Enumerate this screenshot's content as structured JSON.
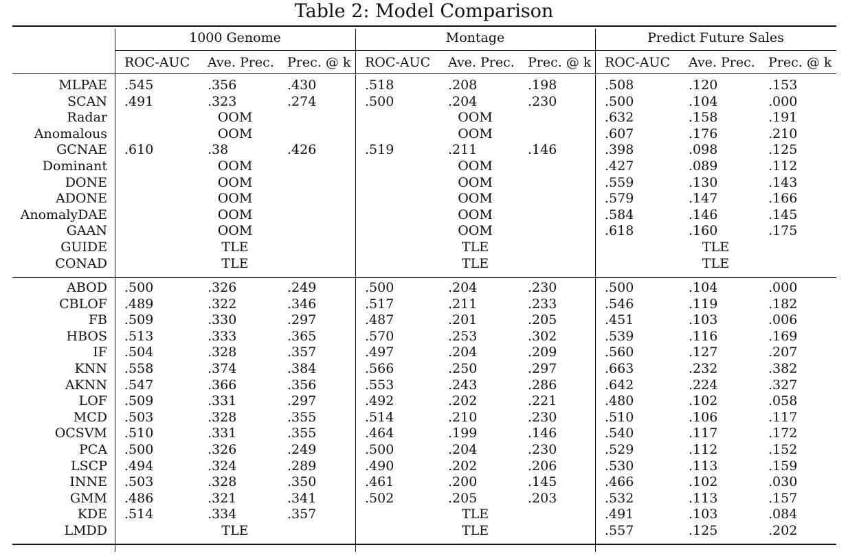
{
  "caption": "Table 2: Model Comparison",
  "groups": [
    "1000 Genome",
    "Montage",
    "Predict Future Sales"
  ],
  "metrics": [
    "ROC-AUC",
    "Ave. Prec.",
    "Prec. @ k"
  ],
  "section1": [
    {
      "model": "MLPAE",
      "g": [
        [
          ".545",
          ".356",
          ".430"
        ],
        [
          ".518",
          ".208",
          ".198"
        ],
        [
          ".508",
          ".120",
          ".153"
        ]
      ]
    },
    {
      "model": "SCAN",
      "g": [
        [
          ".491",
          ".323",
          ".274"
        ],
        [
          ".500",
          ".204",
          ".230"
        ],
        [
          ".500",
          ".104",
          ".000"
        ]
      ]
    },
    {
      "model": "Radar",
      "g": [
        "OOM",
        "OOM",
        [
          ".632",
          ".158",
          ".191"
        ]
      ]
    },
    {
      "model": "Anomalous",
      "g": [
        "OOM",
        "OOM",
        [
          ".607",
          ".176",
          ".210"
        ]
      ]
    },
    {
      "model": "GCNAE",
      "g": [
        [
          ".610",
          ".38",
          ".426"
        ],
        [
          ".519",
          ".211",
          ".146"
        ],
        [
          ".398",
          ".098",
          ".125"
        ]
      ]
    },
    {
      "model": "Dominant",
      "g": [
        "OOM",
        "OOM",
        [
          ".427",
          ".089",
          ".112"
        ]
      ]
    },
    {
      "model": "DONE",
      "g": [
        "OOM",
        "OOM",
        [
          ".559",
          ".130",
          ".143"
        ]
      ]
    },
    {
      "model": "ADONE",
      "g": [
        "OOM",
        "OOM",
        [
          ".579",
          ".147",
          ".166"
        ]
      ]
    },
    {
      "model": "AnomalyDAE",
      "g": [
        "OOM",
        "OOM",
        [
          ".584",
          ".146",
          ".145"
        ]
      ]
    },
    {
      "model": "GAAN",
      "g": [
        "OOM",
        "OOM",
        [
          ".618",
          ".160",
          ".175"
        ]
      ]
    },
    {
      "model": "GUIDE",
      "g": [
        "TLE",
        "TLE",
        "TLE"
      ]
    },
    {
      "model": "CONAD",
      "g": [
        "TLE",
        "TLE",
        "TLE"
      ]
    }
  ],
  "section2": [
    {
      "model": "ABOD",
      "g": [
        [
          ".500",
          ".326",
          ".249"
        ],
        [
          ".500",
          ".204",
          ".230"
        ],
        [
          ".500",
          ".104",
          ".000"
        ]
      ]
    },
    {
      "model": "CBLOF",
      "g": [
        [
          ".489",
          ".322",
          ".346"
        ],
        [
          ".517",
          ".211",
          ".233"
        ],
        [
          ".546",
          ".119",
          ".182"
        ]
      ]
    },
    {
      "model": "FB",
      "g": [
        [
          ".509",
          ".330",
          ".297"
        ],
        [
          ".487",
          ".201",
          ".205"
        ],
        [
          ".451",
          ".103",
          ".006"
        ]
      ]
    },
    {
      "model": "HBOS",
      "g": [
        [
          ".513",
          ".333",
          ".365"
        ],
        [
          ".570",
          ".253",
          ".302"
        ],
        [
          ".539",
          ".116",
          ".169"
        ]
      ]
    },
    {
      "model": "IF",
      "g": [
        [
          ".504",
          ".328",
          ".357"
        ],
        [
          ".497",
          ".204",
          ".209"
        ],
        [
          ".560",
          ".127",
          ".207"
        ]
      ]
    },
    {
      "model": "KNN",
      "g": [
        [
          ".558",
          ".374",
          ".384"
        ],
        [
          ".566",
          ".250",
          ".297"
        ],
        [
          ".663",
          ".232",
          ".382"
        ]
      ]
    },
    {
      "model": "AKNN",
      "g": [
        [
          ".547",
          ".366",
          ".356"
        ],
        [
          ".553",
          ".243",
          ".286"
        ],
        [
          ".642",
          ".224",
          ".327"
        ]
      ]
    },
    {
      "model": "LOF",
      "g": [
        [
          ".509",
          ".331",
          ".297"
        ],
        [
          ".492",
          ".202",
          ".221"
        ],
        [
          ".480",
          ".102",
          ".058"
        ]
      ]
    },
    {
      "model": "MCD",
      "g": [
        [
          ".503",
          ".328",
          ".355"
        ],
        [
          ".514",
          ".210",
          ".230"
        ],
        [
          ".510",
          ".106",
          ".117"
        ]
      ]
    },
    {
      "model": "OCSVM",
      "g": [
        [
          ".510",
          ".331",
          ".355"
        ],
        [
          ".464",
          ".199",
          ".146"
        ],
        [
          ".540",
          ".117",
          ".172"
        ]
      ]
    },
    {
      "model": "PCA",
      "g": [
        [
          ".500",
          ".326",
          ".249"
        ],
        [
          ".500",
          ".204",
          ".230"
        ],
        [
          ".529",
          ".112",
          ".152"
        ]
      ]
    },
    {
      "model": "LSCP",
      "g": [
        [
          ".494",
          ".324",
          ".289"
        ],
        [
          ".490",
          ".202",
          ".206"
        ],
        [
          ".530",
          ".113",
          ".159"
        ]
      ]
    },
    {
      "model": "INNE",
      "g": [
        [
          ".503",
          ".328",
          ".350"
        ],
        [
          ".461",
          ".200",
          ".145"
        ],
        [
          ".466",
          ".102",
          ".030"
        ]
      ]
    },
    {
      "model": "GMM",
      "g": [
        [
          ".486",
          ".321",
          ".341"
        ],
        [
          ".502",
          ".205",
          ".203"
        ],
        [
          ".532",
          ".113",
          ".157"
        ]
      ]
    },
    {
      "model": "KDE",
      "g": [
        [
          ".514",
          ".334",
          ".357"
        ],
        "TLE",
        [
          ".491",
          ".103",
          ".084"
        ]
      ]
    },
    {
      "model": "LMDD",
      "g": [
        "TLE",
        "TLE",
        [
          ".557",
          ".125",
          ".202"
        ]
      ]
    }
  ]
}
